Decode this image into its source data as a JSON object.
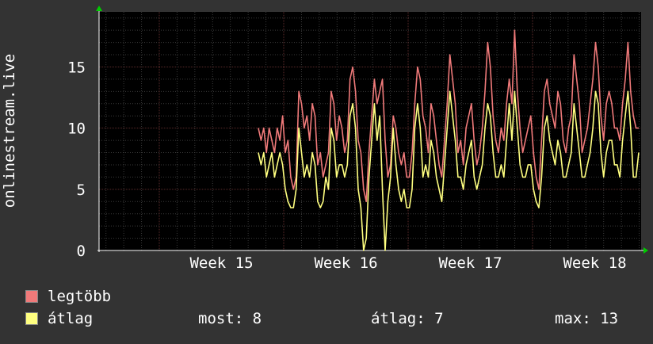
{
  "chart_data": {
    "type": "line",
    "ylabel": "onlinestream.live",
    "ylim": [
      0,
      19.5
    ],
    "yticks": [
      0,
      5,
      10,
      15
    ],
    "x_ticks": [
      "Week 15",
      "Week 16",
      "Week 17",
      "Week 18"
    ],
    "grid": true,
    "series": [
      {
        "name": "legtöbb",
        "color": "#f07a7a",
        "values": [
          10,
          9,
          10,
          8,
          10,
          9,
          8,
          10,
          9,
          11,
          8,
          9,
          6,
          5,
          6,
          13,
          12,
          10,
          11,
          9,
          12,
          11,
          7,
          8,
          6,
          7,
          8,
          13,
          12,
          9,
          11,
          10,
          8,
          9,
          14,
          15,
          13,
          9,
          8,
          5,
          4,
          8,
          11,
          14,
          12,
          13,
          14,
          9,
          6,
          7,
          11,
          10,
          8,
          7,
          8,
          6,
          6,
          8,
          12,
          15,
          14,
          11,
          10,
          8,
          12,
          11,
          9,
          7,
          6,
          9,
          12,
          16,
          14,
          12,
          8,
          9,
          7,
          10,
          11,
          12,
          9,
          7,
          8,
          10,
          13,
          17,
          15,
          11,
          9,
          8,
          10,
          9,
          12,
          14,
          12,
          18,
          13,
          10,
          8,
          9,
          10,
          11,
          8,
          6,
          5,
          9,
          13,
          14,
          12,
          11,
          10,
          13,
          12,
          9,
          8,
          10,
          11,
          16,
          14,
          12,
          8,
          9,
          10,
          12,
          14,
          17,
          15,
          11,
          9,
          12,
          13,
          12,
          10,
          10,
          9,
          12,
          14,
          17,
          13,
          11,
          10,
          10
        ]
      },
      {
        "name": "átlag",
        "color": "#ffff80",
        "values": [
          8,
          7,
          8,
          6,
          7,
          8,
          6,
          7,
          8,
          7,
          5,
          4,
          3.5,
          3.5,
          5,
          10,
          8,
          6,
          7,
          6,
          8,
          7,
          4,
          3.5,
          4,
          6,
          5,
          10,
          9,
          6,
          7,
          7,
          6,
          7,
          11,
          12,
          10,
          5,
          3.5,
          0,
          1,
          6,
          9,
          12,
          9,
          11,
          5,
          0,
          4,
          6,
          10,
          7,
          5,
          4,
          5,
          3.5,
          3.5,
          5,
          10,
          12,
          10,
          6,
          7,
          6,
          9,
          8,
          6,
          5,
          4,
          7,
          10,
          13,
          11,
          9,
          6,
          6,
          5,
          7,
          8,
          9,
          6,
          5,
          6,
          7,
          10,
          12,
          11,
          8,
          6,
          6,
          7,
          6,
          9,
          12,
          9,
          13,
          10,
          7,
          6,
          6,
          7,
          7,
          5,
          4,
          3.5,
          6,
          10,
          11,
          9,
          8,
          7,
          9,
          8,
          6,
          6,
          7,
          8,
          12,
          10,
          8,
          6,
          6,
          7,
          8,
          10,
          13,
          12,
          8,
          6,
          8,
          9,
          9,
          7,
          7,
          6,
          9,
          11,
          13,
          10,
          6,
          6,
          8
        ]
      }
    ]
  },
  "legend": {
    "max_label": "legtöbb",
    "avg_label": "átlag"
  },
  "stats": {
    "current": "most: 8",
    "average": "átlag: 7",
    "maximum": "max: 13"
  }
}
